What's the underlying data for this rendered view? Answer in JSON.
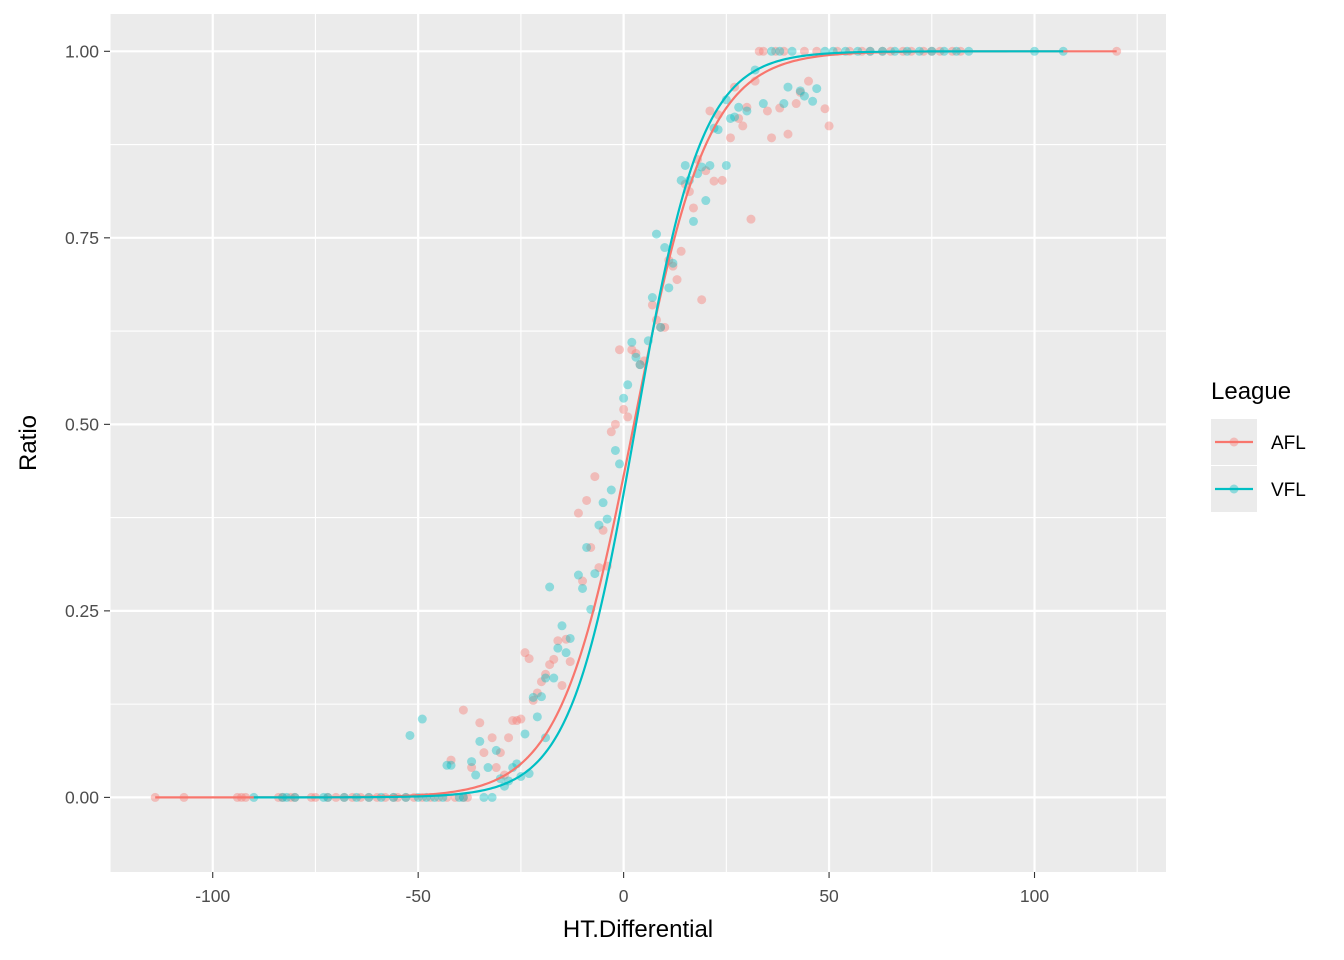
{
  "chart_data": {
    "type": "scatter",
    "xlabel": "HT.Differential",
    "ylabel": "Ratio",
    "xlim": [
      -125,
      132
    ],
    "ylim": [
      -0.1,
      1.05
    ],
    "x_ticks": [
      -100,
      -50,
      0,
      50,
      100
    ],
    "x_tick_labels": [
      "-100",
      "-50",
      "0",
      "50",
      "100"
    ],
    "y_ticks": [
      0,
      0.25,
      0.5,
      0.75,
      1
    ],
    "y_tick_labels": [
      "0.00",
      "0.25",
      "0.50",
      "0.75",
      "1.00"
    ],
    "grid": true,
    "legend": {
      "title": "League",
      "position": "right"
    },
    "series": [
      {
        "name": "AFL",
        "color": "#F8766D",
        "curve": {
          "type": "logistic",
          "midpoint": 2.5,
          "scale": 9.0
        },
        "points": [
          [
            -114,
            0
          ],
          [
            -107,
            0
          ],
          [
            -94,
            0
          ],
          [
            -93,
            0
          ],
          [
            -92,
            0
          ],
          [
            -84,
            0
          ],
          [
            -83,
            0
          ],
          [
            -81,
            0
          ],
          [
            -80,
            0
          ],
          [
            -76,
            0
          ],
          [
            -75,
            0
          ],
          [
            -72,
            0
          ],
          [
            -70,
            0
          ],
          [
            -68,
            0
          ],
          [
            -66,
            0
          ],
          [
            -64,
            0
          ],
          [
            -62,
            0
          ],
          [
            -60,
            0
          ],
          [
            -58,
            0
          ],
          [
            -56,
            0
          ],
          [
            -55,
            0
          ],
          [
            -53,
            0
          ],
          [
            -51,
            0
          ],
          [
            -49,
            0
          ],
          [
            -47,
            0
          ],
          [
            -45,
            0
          ],
          [
            -43,
            0
          ],
          [
            -42,
            0.05
          ],
          [
            -41,
            0
          ],
          [
            -39,
            0
          ],
          [
            -39,
            0.117
          ],
          [
            -38,
            0
          ],
          [
            -37,
            0.04
          ],
          [
            -35,
            0.1
          ],
          [
            -34,
            0.06
          ],
          [
            -32,
            0.08
          ],
          [
            -31,
            0.04
          ],
          [
            -30,
            0.06
          ],
          [
            -29,
            0.03
          ],
          [
            -28,
            0.08
          ],
          [
            -27,
            0.103
          ],
          [
            -26,
            0.103
          ],
          [
            -25,
            0.105
          ],
          [
            -24,
            0.194
          ],
          [
            -23,
            0.186
          ],
          [
            -22,
            0.13
          ],
          [
            -21,
            0.14
          ],
          [
            -20,
            0.155
          ],
          [
            -19,
            0.165
          ],
          [
            -18,
            0.178
          ],
          [
            -17,
            0.185
          ],
          [
            -16,
            0.21
          ],
          [
            -15,
            0.15
          ],
          [
            -14,
            0.212
          ],
          [
            -13,
            0.182
          ],
          [
            -11,
            0.381
          ],
          [
            -10,
            0.29
          ],
          [
            -9,
            0.398
          ],
          [
            -8,
            0.335
          ],
          [
            -7,
            0.43
          ],
          [
            -6,
            0.308
          ],
          [
            -5,
            0.358
          ],
          [
            -4,
            0.31
          ],
          [
            -3,
            0.49
          ],
          [
            -2,
            0.5
          ],
          [
            -1,
            0.6
          ],
          [
            0,
            0.52
          ],
          [
            1,
            0.51
          ],
          [
            2,
            0.6
          ],
          [
            3,
            0.595
          ],
          [
            4,
            0.58
          ],
          [
            5,
            0.585
          ],
          [
            7,
            0.66
          ],
          [
            8,
            0.64
          ],
          [
            9,
            0.63
          ],
          [
            10,
            0.63
          ],
          [
            11,
            0.72
          ],
          [
            12,
            0.712
          ],
          [
            13,
            0.694
          ],
          [
            14,
            0.732
          ],
          [
            15,
            0.822
          ],
          [
            16,
            0.812
          ],
          [
            17,
            0.79
          ],
          [
            18,
            0.855
          ],
          [
            19,
            0.667
          ],
          [
            20,
            0.84
          ],
          [
            21,
            0.92
          ],
          [
            22,
            0.826
          ],
          [
            23,
            0.915
          ],
          [
            24,
            0.827
          ],
          [
            26,
            0.884
          ],
          [
            27,
            0.952
          ],
          [
            28,
            0.91
          ],
          [
            29,
            0.9
          ],
          [
            30,
            0.925
          ],
          [
            31,
            0.775
          ],
          [
            32,
            0.96
          ],
          [
            33,
            1
          ],
          [
            34,
            1
          ],
          [
            35,
            0.92
          ],
          [
            36,
            0.884
          ],
          [
            37,
            1
          ],
          [
            38,
            0.924
          ],
          [
            39,
            1
          ],
          [
            40,
            0.889
          ],
          [
            42,
            0.93
          ],
          [
            43,
            0.945
          ],
          [
            44,
            1
          ],
          [
            45,
            0.96
          ],
          [
            47,
            1
          ],
          [
            49,
            0.923
          ],
          [
            50,
            0.9
          ],
          [
            52,
            1
          ],
          [
            55,
            1
          ],
          [
            58,
            1
          ],
          [
            60,
            1
          ],
          [
            63,
            1
          ],
          [
            65,
            1
          ],
          [
            68,
            1
          ],
          [
            70,
            1
          ],
          [
            73,
            1
          ],
          [
            75,
            1
          ],
          [
            77,
            1
          ],
          [
            80,
            1
          ],
          [
            82,
            1
          ],
          [
            120,
            1
          ]
        ]
      },
      {
        "name": "VFL",
        "color": "#00BFC4",
        "curve": {
          "type": "logistic",
          "midpoint": 3.0,
          "scale": 8.0
        },
        "points": [
          [
            -90,
            0
          ],
          [
            -83,
            0
          ],
          [
            -82,
            0
          ],
          [
            -80,
            0
          ],
          [
            -73,
            0
          ],
          [
            -72,
            0
          ],
          [
            -68,
            0
          ],
          [
            -65,
            0
          ],
          [
            -62,
            0
          ],
          [
            -59,
            0
          ],
          [
            -56,
            0
          ],
          [
            -53,
            0
          ],
          [
            -52,
            0.083
          ],
          [
            -50,
            0
          ],
          [
            -49,
            0.105
          ],
          [
            -48,
            0
          ],
          [
            -46,
            0
          ],
          [
            -44,
            0
          ],
          [
            -43,
            0.043
          ],
          [
            -42,
            0.043
          ],
          [
            -40,
            0
          ],
          [
            -39,
            0
          ],
          [
            -37,
            0.048
          ],
          [
            -36,
            0.03
          ],
          [
            -35,
            0.075
          ],
          [
            -34,
            0
          ],
          [
            -33,
            0.04
          ],
          [
            -32,
            0
          ],
          [
            -31,
            0.063
          ],
          [
            -30,
            0.025
          ],
          [
            -29,
            0.015
          ],
          [
            -28,
            0.022
          ],
          [
            -27,
            0.04
          ],
          [
            -26,
            0.045
          ],
          [
            -25,
            0.028
          ],
          [
            -24,
            0.085
          ],
          [
            -23,
            0.032
          ],
          [
            -22,
            0.134
          ],
          [
            -21,
            0.108
          ],
          [
            -20,
            0.135
          ],
          [
            -19,
            0.16
          ],
          [
            -19,
            0.08
          ],
          [
            -18,
            0.282
          ],
          [
            -17,
            0.16
          ],
          [
            -16,
            0.2
          ],
          [
            -15,
            0.23
          ],
          [
            -14,
            0.194
          ],
          [
            -13,
            0.213
          ],
          [
            -11,
            0.298
          ],
          [
            -10,
            0.28
          ],
          [
            -9,
            0.335
          ],
          [
            -8,
            0.252
          ],
          [
            -7,
            0.3
          ],
          [
            -6,
            0.365
          ],
          [
            -5,
            0.395
          ],
          [
            -4,
            0.373
          ],
          [
            -3,
            0.412
          ],
          [
            -2,
            0.465
          ],
          [
            -1,
            0.447
          ],
          [
            0,
            0.535
          ],
          [
            1,
            0.553
          ],
          [
            2,
            0.61
          ],
          [
            3,
            0.59
          ],
          [
            4,
            0.58
          ],
          [
            6,
            0.612
          ],
          [
            7,
            0.67
          ],
          [
            8,
            0.755
          ],
          [
            9,
            0.63
          ],
          [
            10,
            0.737
          ],
          [
            11,
            0.683
          ],
          [
            12,
            0.716
          ],
          [
            14,
            0.827
          ],
          [
            15,
            0.847
          ],
          [
            16,
            0.827
          ],
          [
            17,
            0.772
          ],
          [
            18,
            0.836
          ],
          [
            19,
            0.845
          ],
          [
            20,
            0.8
          ],
          [
            21,
            0.847
          ],
          [
            22,
            0.897
          ],
          [
            23,
            0.895
          ],
          [
            25,
            0.847
          ],
          [
            25,
            0.935
          ],
          [
            26,
            0.91
          ],
          [
            27,
            0.912
          ],
          [
            28,
            0.925
          ],
          [
            30,
            0.92
          ],
          [
            32,
            0.975
          ],
          [
            34,
            0.93
          ],
          [
            36,
            1
          ],
          [
            38,
            1
          ],
          [
            39,
            0.93
          ],
          [
            40,
            0.952
          ],
          [
            41,
            1
          ],
          [
            43,
            0.947
          ],
          [
            44,
            0.94
          ],
          [
            46,
            0.933
          ],
          [
            47,
            0.95
          ],
          [
            49,
            1
          ],
          [
            51,
            1
          ],
          [
            54,
            1
          ],
          [
            57,
            1
          ],
          [
            60,
            1
          ],
          [
            63,
            1
          ],
          [
            66,
            1
          ],
          [
            69,
            1
          ],
          [
            72,
            1
          ],
          [
            75,
            1
          ],
          [
            78,
            1
          ],
          [
            81,
            1
          ],
          [
            84,
            1
          ],
          [
            100,
            1
          ],
          [
            107,
            1
          ]
        ]
      }
    ]
  }
}
